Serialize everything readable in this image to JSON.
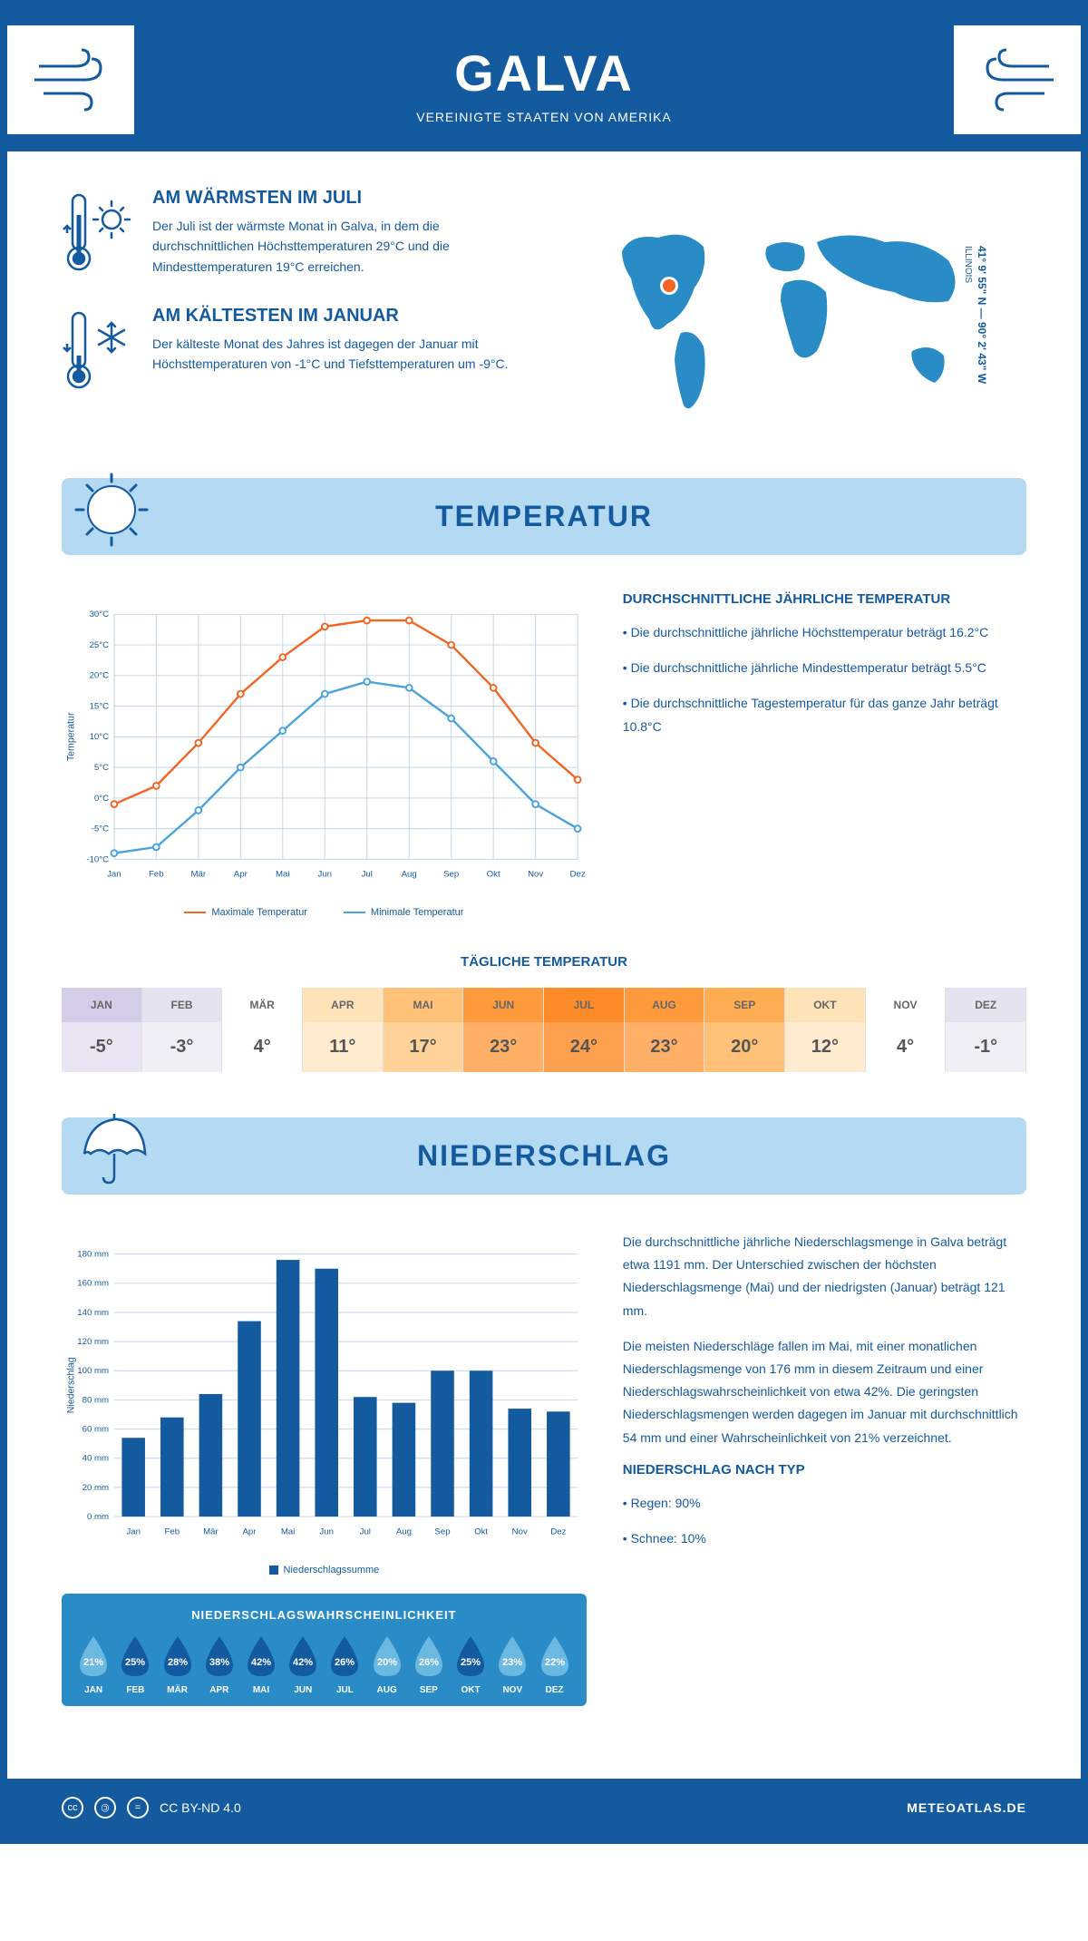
{
  "header": {
    "title": "GALVA",
    "subtitle": "VEREINIGTE STAATEN VON AMERIKA"
  },
  "coords": {
    "line1": "41° 9' 55\" N — 90° 2' 43\" W",
    "line2": "ILLINOIS"
  },
  "intro": {
    "warmest": {
      "title": "AM WÄRMSTEN IM JULI",
      "text": "Der Juli ist der wärmste Monat in Galva, in dem die durchschnittlichen Höchsttemperaturen 29°C und die Mindesttemperaturen 19°C erreichen."
    },
    "coldest": {
      "title": "AM KÄLTESTEN IM JANUAR",
      "text": "Der kälteste Monat des Jahres ist dagegen der Januar mit Höchsttemperaturen von -1°C und Tiefsttemperaturen um -9°C."
    }
  },
  "temp_section": {
    "title": "TEMPERATUR",
    "info_title": "DURCHSCHNITTLICHE JÄHRLICHE TEMPERATUR",
    "bullets": [
      "• Die durchschnittliche jährliche Höchsttemperatur beträgt 16.2°C",
      "• Die durchschnittliche jährliche Mindesttemperatur beträgt 5.5°C",
      "• Die durchschnittliche Tagestemperatur für das ganze Jahr beträgt 10.8°C"
    ],
    "chart": {
      "months": [
        "Jan",
        "Feb",
        "Mär",
        "Apr",
        "Mai",
        "Jun",
        "Jul",
        "Aug",
        "Sep",
        "Okt",
        "Nov",
        "Dez"
      ],
      "max_temp": [
        -1,
        2,
        9,
        17,
        23,
        28,
        29,
        29,
        25,
        18,
        9,
        3
      ],
      "min_temp": [
        -9,
        -8,
        -2,
        5,
        11,
        17,
        19,
        18,
        13,
        6,
        -1,
        -5
      ],
      "max_color": "#f26522",
      "min_color": "#4ba3db",
      "y_ticks": [
        -10,
        -5,
        0,
        5,
        10,
        15,
        20,
        25,
        30
      ],
      "y_tick_labels": [
        "-10°C",
        "-5°C",
        "0°C",
        "5°C",
        "10°C",
        "15°C",
        "20°C",
        "25°C",
        "30°C"
      ],
      "ylabel": "Temperatur",
      "legend_max": "Maximale Temperatur",
      "legend_min": "Minimale Temperatur"
    },
    "daily_title": "TÄGLICHE TEMPERATUR",
    "daily": {
      "months": [
        "JAN",
        "FEB",
        "MÄR",
        "APR",
        "MAI",
        "JUN",
        "JUL",
        "AUG",
        "SEP",
        "OKT",
        "NOV",
        "DEZ"
      ],
      "values": [
        "-5°",
        "-3°",
        "4°",
        "11°",
        "17°",
        "23°",
        "24°",
        "23°",
        "20°",
        "12°",
        "4°",
        "-1°"
      ],
      "header_bg": [
        "#d4cde8",
        "#e4e4f0",
        "#ffffff",
        "#ffe3b8",
        "#ffc178",
        "#ff9a3d",
        "#ff8a28",
        "#ff9a3d",
        "#ffad52",
        "#ffe3b8",
        "#ffffff",
        "#e4e4f0"
      ],
      "value_bg": [
        "#e8e4f2",
        "#f0eef6",
        "#ffffff",
        "#ffecd0",
        "#ffd299",
        "#ffb066",
        "#ffa04e",
        "#ffb066",
        "#ffc078",
        "#ffecd0",
        "#ffffff",
        "#f0eef6"
      ]
    }
  },
  "precip_section": {
    "title": "NIEDERSCHLAG",
    "chart": {
      "months": [
        "Jan",
        "Feb",
        "Mär",
        "Apr",
        "Mai",
        "Jun",
        "Jul",
        "Aug",
        "Sep",
        "Okt",
        "Nov",
        "Dez"
      ],
      "values": [
        54,
        68,
        84,
        134,
        176,
        170,
        82,
        78,
        100,
        100,
        74,
        72
      ],
      "y_ticks": [
        0,
        20,
        40,
        60,
        80,
        100,
        120,
        140,
        160,
        180
      ],
      "y_tick_labels": [
        "0 mm",
        "20 mm",
        "40 mm",
        "60 mm",
        "80 mm",
        "100 mm",
        "120 mm",
        "140 mm",
        "160 mm",
        "180 mm"
      ],
      "bar_color": "#145a9e",
      "ylabel": "Niederschlag",
      "legend": "Niederschlagssumme"
    },
    "text1": "Die durchschnittliche jährliche Niederschlagsmenge in Galva beträgt etwa 1191 mm. Der Unterschied zwischen der höchsten Niederschlagsmenge (Mai) und der niedrigsten (Januar) beträgt 121 mm.",
    "text2": "Die meisten Niederschläge fallen im Mai, mit einer monatlichen Niederschlagsmenge von 176 mm in diesem Zeitraum und einer Niederschlagswahrscheinlichkeit von etwa 42%. Die geringsten Niederschlagsmengen werden dagegen im Januar mit durchschnittlich 54 mm und einer Wahrscheinlichkeit von 21% verzeichnet.",
    "by_type_title": "NIEDERSCHLAG NACH TYP",
    "by_type": [
      "• Regen: 90%",
      "• Schnee: 10%"
    ],
    "prob_title": "NIEDERSCHLAGSWAHRSCHEINLICHKEIT",
    "prob": {
      "months": [
        "JAN",
        "FEB",
        "MÄR",
        "APR",
        "MAI",
        "JUN",
        "JUL",
        "AUG",
        "SEP",
        "OKT",
        "NOV",
        "DEZ"
      ],
      "values": [
        "21%",
        "25%",
        "28%",
        "38%",
        "42%",
        "42%",
        "26%",
        "20%",
        "26%",
        "25%",
        "23%",
        "22%"
      ],
      "colors": [
        "#6bb8e0",
        "#145a9e",
        "#145a9e",
        "#145a9e",
        "#145a9e",
        "#145a9e",
        "#145a9e",
        "#6bb8e0",
        "#6bb8e0",
        "#145a9e",
        "#6bb8e0",
        "#6bb8e0"
      ]
    }
  },
  "footer": {
    "license": "CC BY-ND 4.0",
    "site": "METEOATLAS.DE"
  }
}
